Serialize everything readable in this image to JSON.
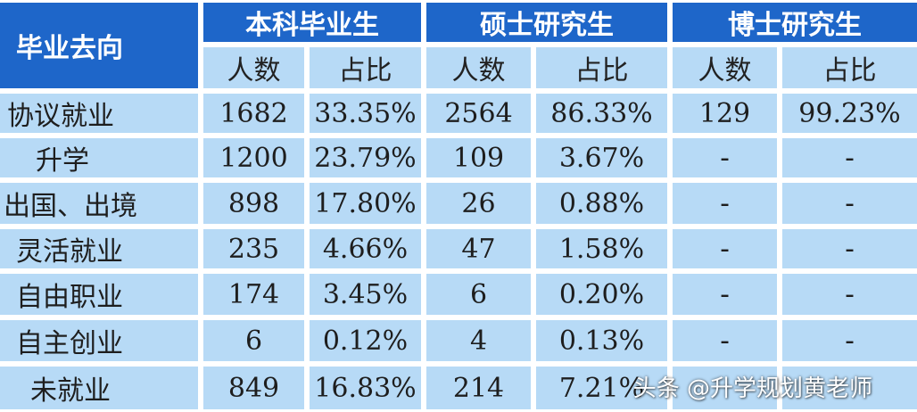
{
  "table": {
    "corner_header": "毕业去向",
    "groups": [
      "本科毕业生",
      "硕士研究生",
      "博士研究生"
    ],
    "subheaders": [
      "人数",
      "占比",
      "人数",
      "占比",
      "人数",
      "占比"
    ],
    "rows": [
      {
        "label": "协议就业",
        "values": [
          "1682",
          "33.35%",
          "2564",
          "86.33%",
          "129",
          "99.23%"
        ]
      },
      {
        "label": "升学",
        "values": [
          "1200",
          "23.79%",
          "109",
          "3.67%",
          "-",
          "-"
        ]
      },
      {
        "label": "出国、出境",
        "values": [
          "898",
          "17.80%",
          "26",
          "0.88%",
          "-",
          "-"
        ]
      },
      {
        "label": "灵活就业",
        "values": [
          "235",
          "4.66%",
          "47",
          "1.58%",
          "-",
          "-"
        ]
      },
      {
        "label": "自由职业",
        "values": [
          "174",
          "3.45%",
          "6",
          "0.20%",
          "-",
          "-"
        ]
      },
      {
        "label": "自主创业",
        "values": [
          "6",
          "0.12%",
          "4",
          "0.13%",
          "-",
          "-"
        ]
      },
      {
        "label": "未就业",
        "values": [
          "849",
          "16.83%",
          "214",
          "7.21%",
          "",
          ""
        ]
      }
    ]
  },
  "watermark": "头条 @升学规划黄老师",
  "colors": {
    "header_bg": "#1e66c9",
    "cell_bg": "#b7daf6"
  }
}
